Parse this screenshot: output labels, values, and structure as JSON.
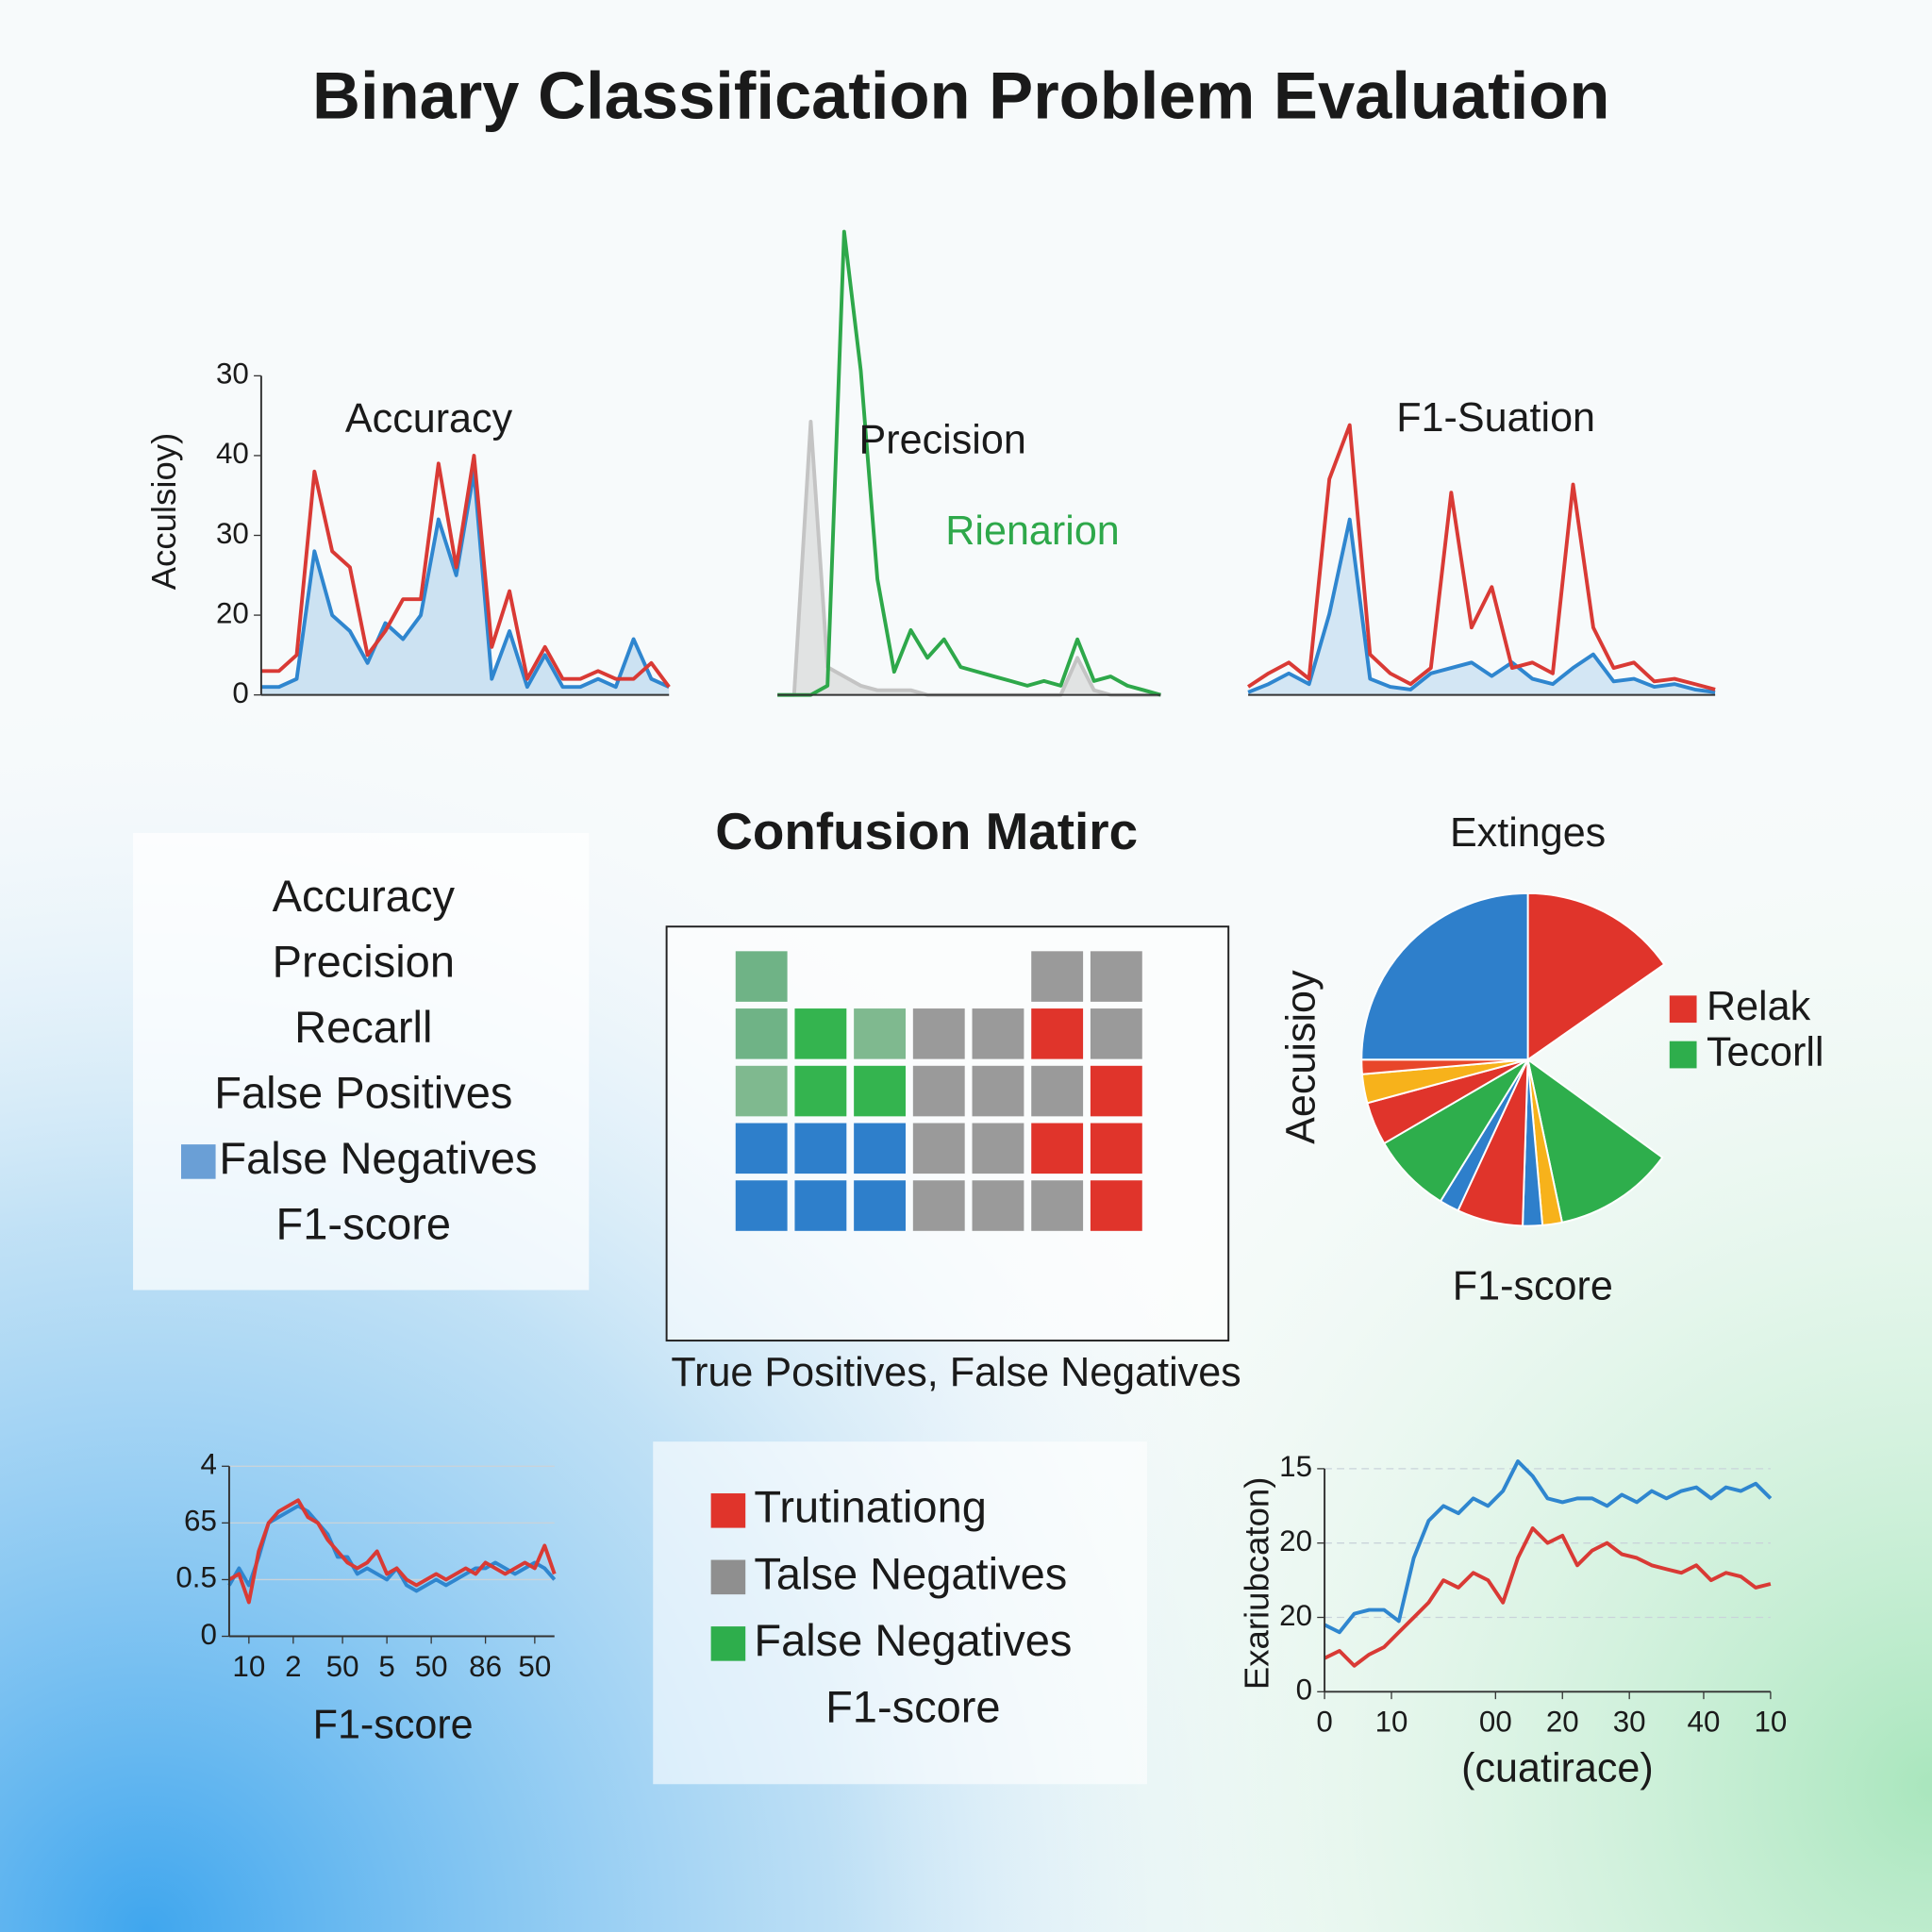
{
  "title": "Binary Classification Problem Evaluation",
  "chart_data": [
    {
      "type": "line",
      "title": "Accuracy",
      "ylabel": "Acculsioy)",
      "categories": [
        null,
        null,
        null,
        null,
        null,
        null,
        null,
        null,
        null,
        null,
        null,
        null,
        null,
        null,
        null,
        null,
        null,
        null,
        null,
        null,
        null,
        null,
        null,
        null
      ],
      "ylim": [
        0,
        40
      ],
      "yticks": [
        0,
        {
          "value": 10,
          "label": "20"
        },
        {
          "value": 20,
          "label": "30"
        },
        {
          "value": 30,
          "label": "40"
        },
        {
          "value": 40,
          "label": "30"
        }
      ],
      "series": [
        {
          "color": "#2f86cf",
          "fill": "#a9cdeb",
          "values": [
            1,
            1,
            2,
            18,
            10,
            8,
            4,
            9,
            7,
            10,
            22,
            15,
            28,
            2,
            8,
            1,
            5,
            1,
            1,
            2,
            1,
            7,
            2,
            1
          ]
        },
        {
          "color": "#d93a35",
          "values": [
            3,
            3,
            5,
            28,
            18,
            16,
            5,
            8,
            12,
            12,
            29,
            16,
            30,
            6,
            13,
            2,
            6,
            2,
            2,
            3,
            2,
            2,
            4,
            1
          ]
        }
      ]
    },
    {
      "type": "line",
      "title": "Precision",
      "annotation": "Rienarion",
      "annotation_color": "#2ea84a",
      "categories": [
        null,
        null,
        null,
        null,
        null,
        null,
        null,
        null,
        null,
        null,
        null,
        null,
        null,
        null,
        null,
        null,
        null,
        null,
        null,
        null,
        null,
        null,
        null,
        null
      ],
      "ylim": [
        0,
        100
      ],
      "series": [
        {
          "color": "#c4c4c4",
          "fill": "#cfcfcf",
          "values": [
            0,
            0,
            59,
            6,
            4,
            2,
            1,
            1,
            1,
            0,
            0,
            0,
            0,
            0,
            0,
            0,
            0,
            0,
            8,
            1,
            0,
            0,
            0,
            0
          ]
        },
        {
          "color": "#2ea84a",
          "values": [
            0,
            0,
            0,
            2,
            100,
            70,
            25,
            5,
            14,
            8,
            12,
            6,
            5,
            4,
            3,
            2,
            3,
            2,
            12,
            3,
            4,
            2,
            1,
            0
          ]
        }
      ]
    },
    {
      "type": "line",
      "title": "F1-Suation",
      "categories": [
        null,
        null,
        null,
        null,
        null,
        null,
        null,
        null,
        null,
        null,
        null,
        null,
        null,
        null,
        null,
        null,
        null,
        null,
        null,
        null,
        null,
        null,
        null,
        null
      ],
      "ylim": [
        0,
        100
      ],
      "series": [
        {
          "color": "#2f86cf",
          "fill": "#b7d6ef",
          "values": [
            1,
            4,
            8,
            4,
            30,
            65,
            6,
            3,
            2,
            8,
            10,
            12,
            7,
            12,
            6,
            4,
            10,
            15,
            5,
            6,
            3,
            4,
            2,
            1
          ]
        },
        {
          "color": "#d93a35",
          "values": [
            3,
            8,
            12,
            6,
            80,
            100,
            15,
            8,
            4,
            10,
            75,
            25,
            40,
            10,
            12,
            8,
            78,
            25,
            10,
            12,
            5,
            6,
            4,
            2
          ]
        }
      ]
    },
    {
      "type": "pie",
      "title": "Extinges",
      "ylabel": "Aecuisioy",
      "xlabel": "F1-score",
      "values": [
        15.3,
        19.7,
        11.7,
        1.9,
        1.9,
        6.4,
        1.9,
        7.8,
        4.2,
        2.8,
        1.4,
        25
      ],
      "colors": [
        "#e0342b",
        null,
        "#2eae4c",
        "#f7b21b",
        "#2e7fcb",
        "#e0342b",
        "#2e7fcb",
        "#2eae4c",
        "#e0342b",
        "#f7b21b",
        "#e8462a",
        "#2e7fcb"
      ],
      "legend": [
        {
          "name": "Relak",
          "color": "#e0342b"
        },
        {
          "name": "Tecorll",
          "color": "#2eae4c"
        }
      ]
    },
    {
      "type": "line",
      "xlabel": "F1-score",
      "grid": true,
      "x": [
        0,
        1,
        2,
        3,
        4,
        5,
        6,
        7,
        8,
        9,
        10,
        11,
        12,
        13,
        14,
        15,
        16,
        17,
        18,
        19,
        20,
        21,
        22,
        23,
        24,
        25,
        26,
        27,
        28,
        29,
        30,
        31,
        32,
        33
      ],
      "xlim": [
        0,
        33
      ],
      "xticks": [
        {
          "value": 2,
          "label": "10"
        },
        {
          "value": 6.5,
          "label": "2"
        },
        {
          "value": 11.5,
          "label": "50"
        },
        {
          "value": 16,
          "label": "5"
        },
        {
          "value": 20.5,
          "label": "50"
        },
        {
          "value": 26,
          "label": "86"
        },
        {
          "value": 31,
          "label": "50"
        }
      ],
      "ylim": [
        0,
        3
      ],
      "yticks": [
        0,
        {
          "value": 1,
          "label": "0.5"
        },
        {
          "value": 2,
          "label": "65"
        },
        {
          "value": 3,
          "label": "4"
        }
      ],
      "series": [
        {
          "color": "#2f86cf",
          "values": [
            0.9,
            1.2,
            0.9,
            1.4,
            2.0,
            2.1,
            2.2,
            2.3,
            2.2,
            2.0,
            1.8,
            1.4,
            1.4,
            1.1,
            1.2,
            1.1,
            1.0,
            1.2,
            0.9,
            0.8,
            0.9,
            1.0,
            0.9,
            1.0,
            1.1,
            1.2,
            1.2,
            1.3,
            1.2,
            1.1,
            1.2,
            1.3,
            1.2,
            1.0
          ]
        },
        {
          "color": "#d93a35",
          "values": [
            1.0,
            1.1,
            0.6,
            1.5,
            2.0,
            2.2,
            2.3,
            2.4,
            2.1,
            2.0,
            1.7,
            1.5,
            1.3,
            1.2,
            1.3,
            1.5,
            1.1,
            1.2,
            1.0,
            0.9,
            1.0,
            1.1,
            1.0,
            1.1,
            1.2,
            1.1,
            1.3,
            1.2,
            1.1,
            1.2,
            1.3,
            1.2,
            1.6,
            1.1
          ]
        }
      ]
    },
    {
      "type": "line",
      "xlabel": "(cuatirace)",
      "ylabel": "Exariubcaton)",
      "grid": true,
      "x": [
        0,
        2,
        4,
        6,
        8,
        10,
        12,
        14,
        16,
        18,
        20,
        22,
        24,
        26,
        28,
        30,
        32,
        34,
        36,
        38,
        40,
        42,
        44,
        46,
        48,
        50,
        52,
        54,
        56,
        58,
        60
      ],
      "xlim": [
        0,
        60
      ],
      "xticks": [
        0,
        {
          "value": 9,
          "label": "10"
        },
        {
          "value": 23,
          "label": "00"
        },
        {
          "value": 32,
          "label": "20"
        },
        {
          "value": 41,
          "label": "30"
        },
        {
          "value": 51,
          "label": "40"
        },
        {
          "value": 60,
          "label": "10"
        }
      ],
      "ylim": [
        0,
        3
      ],
      "yticks": [
        0,
        {
          "value": 1,
          "label": "20"
        },
        {
          "value": 2,
          "label": "20"
        },
        {
          "value": 3,
          "label": "15"
        }
      ],
      "series": [
        {
          "color": "#2f86cf",
          "values": [
            0.9,
            0.8,
            1.05,
            1.1,
            1.1,
            0.95,
            1.8,
            2.3,
            2.5,
            2.4,
            2.6,
            2.5,
            2.7,
            3.1,
            2.9,
            2.6,
            2.55,
            2.6,
            2.6,
            2.5,
            2.65,
            2.55,
            2.7,
            2.6,
            2.7,
            2.75,
            2.6,
            2.75,
            2.7,
            2.8,
            2.6
          ]
        },
        {
          "color": "#d93a35",
          "values": [
            0.45,
            0.55,
            0.35,
            0.5,
            0.6,
            0.8,
            1.0,
            1.2,
            1.5,
            1.4,
            1.6,
            1.5,
            1.2,
            1.8,
            2.2,
            2.0,
            2.1,
            1.7,
            1.9,
            2.0,
            1.85,
            1.8,
            1.7,
            1.65,
            1.6,
            1.7,
            1.5,
            1.6,
            1.55,
            1.4,
            1.45
          ]
        }
      ]
    }
  ],
  "metrics_panel": {
    "items": [
      "Accuracy",
      "Precision",
      "Recarll",
      "False Positives",
      "False Negatives",
      "F1-score"
    ],
    "marker_item": 4,
    "marker_color": "#6a9fd6"
  },
  "confusion_matrix": {
    "title": "Confusion Matirc",
    "caption": "True Positives, False Negatives",
    "cells": [
      [
        "#6fb386",
        null,
        null,
        null,
        null,
        "#9a9a9a",
        "#9a9a9a"
      ],
      [
        "#6fb386",
        "#34b44f",
        "#7fb98f",
        "#9a9a9a",
        "#9a9a9a",
        "#e0342b",
        "#9a9a9a"
      ],
      [
        "#7fb98f",
        "#34b44f",
        "#34b44f",
        "#9a9a9a",
        "#9a9a9a",
        "#9a9a9a",
        "#e0342b"
      ],
      [
        "#2e7fcb",
        "#2e7fcb",
        "#2e7fcb",
        "#9a9a9a",
        "#9a9a9a",
        "#e0342b",
        "#e0342b"
      ],
      [
        "#2e7fcb",
        "#2e7fcb",
        "#2e7fcb",
        "#9a9a9a",
        "#9a9a9a",
        "#9a9a9a",
        "#e0342b"
      ]
    ]
  },
  "legend_panel": {
    "items": [
      {
        "label": "Trutinationg",
        "color": "#e0342b"
      },
      {
        "label": "Talse Negatives",
        "color": "#8f8f8f"
      },
      {
        "label": "False Negatives",
        "color": "#2eae4c"
      },
      {
        "label": "F1-score"
      }
    ]
  }
}
